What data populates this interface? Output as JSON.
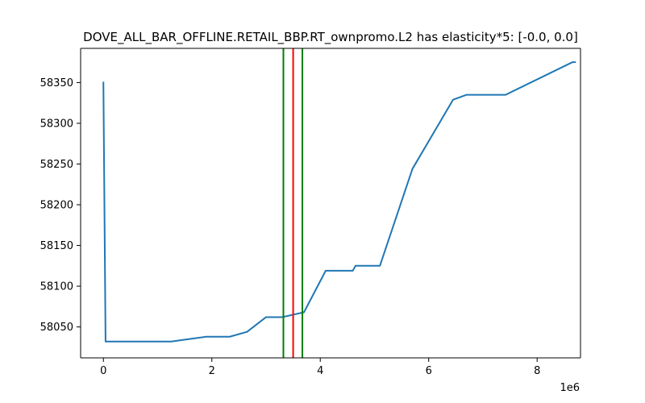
{
  "chart_data": {
    "type": "line",
    "title": "DOVE_ALL_BAR_OFFLINE.RETAIL_BBP.RT_ownpromo.L2 has elasticity*5:   [-0.0, 0.0]",
    "xlabel": "",
    "ylabel": "",
    "x_offset_label": "1e6",
    "x_scale": 1000000,
    "xlim": [
      -420000,
      8800000
    ],
    "ylim": [
      58012,
      58392
    ],
    "x_ticks": [
      0,
      2000000,
      4000000,
      6000000,
      8000000
    ],
    "x_tick_labels": [
      "0",
      "2",
      "4",
      "6",
      "8"
    ],
    "y_ticks": [
      58050,
      58100,
      58150,
      58200,
      58250,
      58300,
      58350
    ],
    "y_tick_labels": [
      "58050",
      "58100",
      "58150",
      "58200",
      "58250",
      "58300",
      "58350"
    ],
    "grid": false,
    "series": [
      {
        "color": "#1f77b4",
        "x": [
          0,
          40000,
          1250000,
          1900000,
          2330000,
          2650000,
          3000000,
          3300000,
          3500000,
          3700000,
          4100000,
          4600000,
          4650000,
          5100000,
          5700000,
          6450000,
          6700000,
          7420000,
          8650000,
          8700000
        ],
        "y": [
          58350,
          58032,
          58032,
          58038,
          58038,
          58044,
          58062,
          58062,
          58065,
          58068,
          58119,
          58119,
          58125,
          58125,
          58244,
          58329,
          58335,
          58335,
          58375,
          58375
        ]
      }
    ],
    "vlines": [
      {
        "x": 3320000,
        "color": "#008000"
      },
      {
        "x": 3500000,
        "color": "#ff0000"
      },
      {
        "x": 3670000,
        "color": "#008000"
      }
    ]
  }
}
